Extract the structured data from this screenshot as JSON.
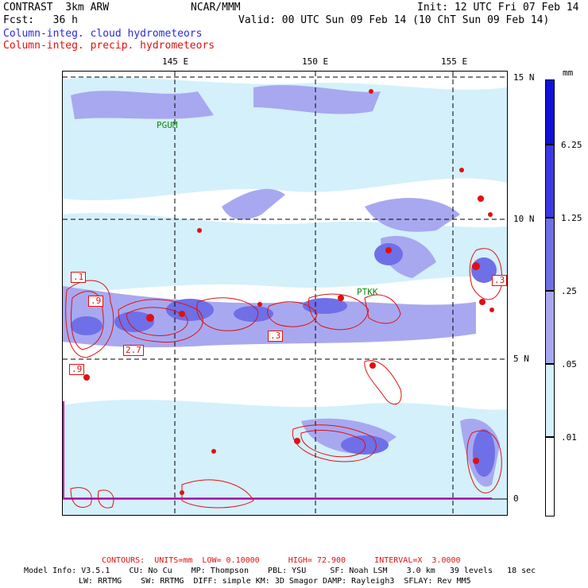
{
  "header": {
    "line1_left": "CONTRAST  3km ARW",
    "line1_mid": "NCAR/MMM",
    "line1_right": "Init: 12 UTC Fri 07 Feb 14",
    "line2_left": "Fcst:   36 h",
    "line2_right": "Valid: 00 UTC Sun 09 Feb 14 (10 ChT Sun 09 Feb 14)",
    "field1": "Column-integ. cloud hydrometeors",
    "field2": "Column-integ. precip. hydrometeors"
  },
  "map": {
    "lon_labels": [
      "145 E",
      "150 E",
      "155 E"
    ],
    "lat_labels": [
      "15 N",
      "10 N",
      "5 N",
      "0"
    ],
    "stations": [
      "PGUM",
      "PTKK"
    ],
    "contour_labels": [
      ".1",
      ".9",
      "2.7",
      ".9",
      ".3",
      ".3"
    ]
  },
  "colorbar": {
    "unit": "mm",
    "levels": [
      "6.25",
      "1.25",
      ".25",
      ".05",
      ".01"
    ],
    "colors": [
      "#1010d8",
      "#3a3ae0",
      "#6f6fe8",
      "#a8a8f0",
      "#d4f0fb",
      "#ffffff"
    ]
  },
  "footer": {
    "contours": "CONTOURS:  UNITS=mm  LOW= 0.10000      HIGH= 72.900      INTERVAL=X  3.0000",
    "model_line1": "Model Info: V3.5.1    CU: No Cu    MP: Thompson    PBL: YSU     SF: Noah LSM    3.0 km   39 levels   18 sec",
    "model_line2": "LW: RRTMG    SW: RRTMG  DIFF: simple KM: 3D Smagor DAMP: Rayleigh3  SFLAY: Rev MM5"
  }
}
